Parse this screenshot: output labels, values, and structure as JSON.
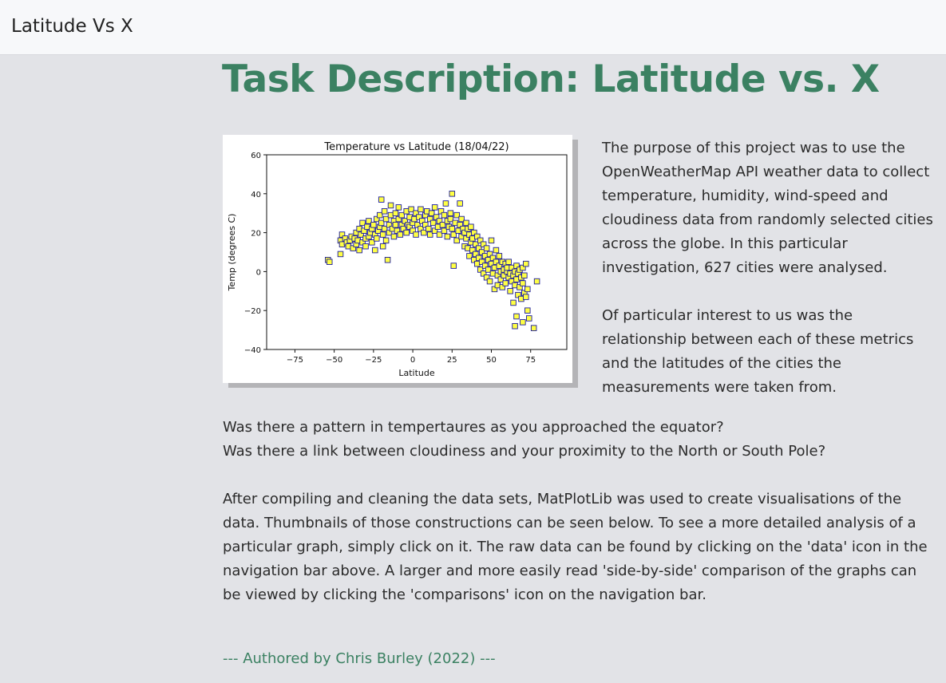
{
  "navbar": {
    "brand": "Latitude Vs X"
  },
  "page": {
    "title": "Task Description: Latitude vs. X",
    "intro_1": "The purpose of this project was to use the OpenWeatherMap API weather data to collect temperature, humidity, wind-speed and cloudiness data from randomly selected cities across the globe. In this particular investigation, 627 cities were analysed.",
    "intro_2": "Of particular interest to us was the relationship between each of these metrics and the latitudes of the cities the measurements were taken from.",
    "question_1": "Was there a pattern in tempertaures as you approached the equator?",
    "question_2": "Was there a link between cloudiness and your proximity to the North or South Pole?",
    "body": "After compiling and cleaning the data sets, MatPlotLib was used to create visualisations of the data. Thumbnails of those constructions can be seen below. To see a more detailed analysis of a particular graph, simply click on it. The raw data can be found by clicking on the 'data' icon in the navigation bar above. A larger and more easily read 'side-by-side' comparison of the graphs can be viewed by clicking the 'comparisons' icon on the navigation bar.",
    "author": "--- Authored by Chris Burley (2022) ---"
  },
  "colors": {
    "accent": "#3b8162",
    "marker_fill": "#ffff44",
    "marker_edge": "#1a1aa0"
  },
  "chart_data": {
    "type": "scatter",
    "title": "Temperature vs Latitude (18/04/22)",
    "xlabel": "Latitude",
    "ylabel": "Temp (degrees C)",
    "xlim": [
      -93,
      98
    ],
    "ylim": [
      -40,
      60
    ],
    "xticks": [
      -75,
      -50,
      -25,
      0,
      25,
      50,
      75
    ],
    "yticks": [
      -40,
      -20,
      0,
      20,
      40,
      60
    ],
    "xtick_labels": [
      "−75",
      "−50",
      "−25",
      "0",
      "25",
      "50",
      "75"
    ],
    "ytick_labels": [
      "−40",
      "−20",
      "0",
      "20",
      "40",
      "60"
    ],
    "grid": false,
    "points": [
      [
        -54,
        6
      ],
      [
        -53,
        5
      ],
      [
        -46,
        9
      ],
      [
        -46,
        16
      ],
      [
        -45,
        14
      ],
      [
        -45,
        19
      ],
      [
        -43,
        17
      ],
      [
        -42,
        15
      ],
      [
        -41,
        13
      ],
      [
        -40,
        16
      ],
      [
        -39,
        18
      ],
      [
        -38,
        12
      ],
      [
        -37,
        17
      ],
      [
        -36,
        20
      ],
      [
        -36,
        14
      ],
      [
        -35,
        16
      ],
      [
        -34,
        22
      ],
      [
        -34,
        11
      ],
      [
        -33,
        19
      ],
      [
        -32,
        25
      ],
      [
        -32,
        15
      ],
      [
        -31,
        21
      ],
      [
        -30,
        17
      ],
      [
        -30,
        13
      ],
      [
        -29,
        23
      ],
      [
        -28,
        26
      ],
      [
        -28,
        18
      ],
      [
        -27,
        20
      ],
      [
        -26,
        15
      ],
      [
        -26,
        22
      ],
      [
        -25,
        24
      ],
      [
        -24,
        19
      ],
      [
        -24,
        11
      ],
      [
        -23,
        27
      ],
      [
        -23,
        17
      ],
      [
        -22,
        21
      ],
      [
        -21,
        29
      ],
      [
        -21,
        23
      ],
      [
        -20,
        25
      ],
      [
        -20,
        37
      ],
      [
        -19,
        19
      ],
      [
        -19,
        13
      ],
      [
        -18,
        31
      ],
      [
        -18,
        22
      ],
      [
        -17,
        27
      ],
      [
        -17,
        16
      ],
      [
        -16,
        6
      ],
      [
        -15,
        24
      ],
      [
        -15,
        20
      ],
      [
        -14,
        29
      ],
      [
        -14,
        34
      ],
      [
        -13,
        22
      ],
      [
        -12,
        26
      ],
      [
        -12,
        18
      ],
      [
        -11,
        30
      ],
      [
        -11,
        24
      ],
      [
        -10,
        21
      ],
      [
        -9,
        27
      ],
      [
        -9,
        33
      ],
      [
        -8,
        19
      ],
      [
        -7,
        24
      ],
      [
        -7,
        29
      ],
      [
        -6,
        22
      ],
      [
        -5,
        26
      ],
      [
        -4,
        31
      ],
      [
        -4,
        20
      ],
      [
        -3,
        24
      ],
      [
        -2,
        28
      ],
      [
        -2,
        23
      ],
      [
        -1,
        32
      ],
      [
        0,
        25
      ],
      [
        0,
        21
      ],
      [
        1,
        27
      ],
      [
        2,
        30
      ],
      [
        2,
        19
      ],
      [
        3,
        24
      ],
      [
        4,
        28
      ],
      [
        5,
        22
      ],
      [
        5,
        32
      ],
      [
        6,
        26
      ],
      [
        7,
        20
      ],
      [
        8,
        29
      ],
      [
        8,
        24
      ],
      [
        9,
        31
      ],
      [
        10,
        22
      ],
      [
        11,
        27
      ],
      [
        11,
        19
      ],
      [
        12,
        30
      ],
      [
        13,
        25
      ],
      [
        14,
        21
      ],
      [
        14,
        33
      ],
      [
        15,
        28
      ],
      [
        16,
        23
      ],
      [
        17,
        26
      ],
      [
        17,
        19
      ],
      [
        18,
        31
      ],
      [
        19,
        24
      ],
      [
        20,
        29
      ],
      [
        20,
        21
      ],
      [
        21,
        35
      ],
      [
        22,
        26
      ],
      [
        22,
        18
      ],
      [
        23,
        23
      ],
      [
        24,
        30
      ],
      [
        24,
        27
      ],
      [
        25,
        40
      ],
      [
        25,
        22
      ],
      [
        26,
        3
      ],
      [
        26,
        19
      ],
      [
        27,
        25
      ],
      [
        28,
        29
      ],
      [
        28,
        16
      ],
      [
        29,
        21
      ],
      [
        30,
        35
      ],
      [
        30,
        24
      ],
      [
        31,
        18
      ],
      [
        31,
        27
      ],
      [
        32,
        22
      ],
      [
        33,
        13
      ],
      [
        33,
        20
      ],
      [
        34,
        25
      ],
      [
        34,
        17
      ],
      [
        35,
        12
      ],
      [
        35,
        22
      ],
      [
        36,
        19
      ],
      [
        36,
        8
      ],
      [
        37,
        15
      ],
      [
        37,
        23
      ],
      [
        38,
        11
      ],
      [
        38,
        17
      ],
      [
        39,
        20
      ],
      [
        39,
        6
      ],
      [
        40,
        14
      ],
      [
        40,
        9
      ],
      [
        41,
        18
      ],
      [
        41,
        4
      ],
      [
        42,
        12
      ],
      [
        42,
        7
      ],
      [
        43,
        16
      ],
      [
        43,
        1
      ],
      [
        44,
        10
      ],
      [
        44,
        5
      ],
      [
        45,
        14
      ],
      [
        45,
        -1
      ],
      [
        46,
        8
      ],
      [
        46,
        3
      ],
      [
        47,
        12
      ],
      [
        47,
        -3
      ],
      [
        48,
        6
      ],
      [
        48,
        1
      ],
      [
        49,
        9
      ],
      [
        49,
        -5
      ],
      [
        50,
        4
      ],
      [
        50,
        16
      ],
      [
        51,
        -1
      ],
      [
        51,
        7
      ],
      [
        52,
        2
      ],
      [
        52,
        -9
      ],
      [
        53,
        5
      ],
      [
        53,
        11
      ],
      [
        54,
        -2
      ],
      [
        54,
        -7
      ],
      [
        55,
        3
      ],
      [
        55,
        8
      ],
      [
        56,
        0
      ],
      [
        56,
        -4
      ],
      [
        57,
        5
      ],
      [
        57,
        -8
      ],
      [
        58,
        1
      ],
      [
        58,
        -2
      ],
      [
        59,
        4
      ],
      [
        59,
        -6
      ],
      [
        60,
        0
      ],
      [
        60,
        2
      ],
      [
        61,
        -3
      ],
      [
        61,
        5
      ],
      [
        62,
        -1
      ],
      [
        62,
        -10
      ],
      [
        63,
        -5
      ],
      [
        63,
        2
      ],
      [
        64,
        -2
      ],
      [
        64,
        -16
      ],
      [
        65,
        0
      ],
      [
        65,
        -7
      ],
      [
        66,
        -4
      ],
      [
        66,
        3
      ],
      [
        67,
        -12
      ],
      [
        67,
        -1
      ],
      [
        68,
        -8
      ],
      [
        68,
        1
      ],
      [
        69,
        -3
      ],
      [
        69,
        -14
      ],
      [
        70,
        -6
      ],
      [
        70,
        2
      ],
      [
        71,
        -11
      ],
      [
        71,
        -2
      ],
      [
        72,
        -13
      ],
      [
        72,
        4
      ],
      [
        73,
        -20
      ],
      [
        73,
        -9
      ],
      [
        74,
        -24
      ],
      [
        65,
        -28
      ],
      [
        70,
        -26
      ],
      [
        77,
        -29
      ],
      [
        79,
        -5
      ],
      [
        66,
        -23
      ]
    ]
  }
}
